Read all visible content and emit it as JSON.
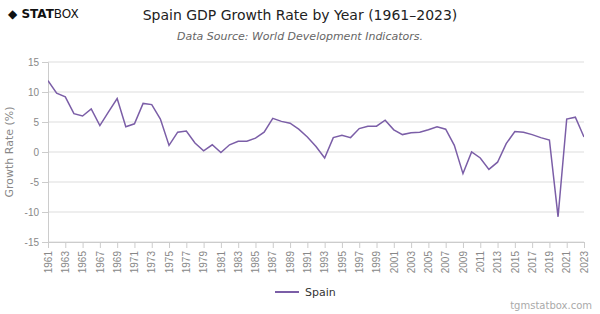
{
  "chart_data": {
    "type": "line",
    "title": "Spain GDP Growth Rate by Year (1961–2023)",
    "subtitle": "Data Source: World Development Indicators.",
    "y_label": "Growth Rate (%)",
    "annotations": [
      "◆ STAT",
      "BOX",
      "tgmstatbox.com"
    ],
    "x": [
      1961,
      1962,
      1963,
      1964,
      1965,
      1966,
      1967,
      1968,
      1969,
      1970,
      1971,
      1972,
      1973,
      1974,
      1975,
      1976,
      1977,
      1978,
      1979,
      1980,
      1981,
      1982,
      1983,
      1984,
      1985,
      1986,
      1987,
      1988,
      1989,
      1990,
      1991,
      1992,
      1993,
      1994,
      1995,
      1996,
      1997,
      1998,
      1999,
      2000,
      2001,
      2002,
      2003,
      2004,
      2005,
      2006,
      2007,
      2008,
      2009,
      2010,
      2011,
      2012,
      2013,
      2014,
      2015,
      2016,
      2017,
      2018,
      2019,
      2020,
      2021,
      2022,
      2023
    ],
    "series": [
      {
        "name": "Spain",
        "color": "#7B5EA7",
        "values": [
          11.9,
          9.8,
          9.2,
          6.4,
          6.0,
          7.2,
          4.4,
          6.7,
          8.9,
          4.2,
          4.7,
          8.1,
          7.9,
          5.5,
          1.1,
          3.3,
          3.5,
          1.5,
          0.2,
          1.2,
          -0.1,
          1.2,
          1.8,
          1.8,
          2.3,
          3.3,
          5.6,
          5.1,
          4.8,
          3.8,
          2.5,
          0.9,
          -1.0,
          2.4,
          2.8,
          2.4,
          3.9,
          4.3,
          4.3,
          5.3,
          3.7,
          2.9,
          3.2,
          3.3,
          3.7,
          4.2,
          3.8,
          1.1,
          -3.6,
          0.0,
          -1.0,
          -2.9,
          -1.7,
          1.4,
          3.4,
          3.3,
          2.9,
          2.4,
          2.0,
          -10.8,
          5.5,
          5.8,
          2.5
        ]
      }
    ],
    "xlim": [
      1961,
      2023
    ],
    "xticks": [
      1961,
      1963,
      1965,
      1967,
      1969,
      1971,
      1973,
      1975,
      1977,
      1979,
      1981,
      1983,
      1985,
      1987,
      1989,
      1991,
      1993,
      1995,
      1997,
      1999,
      2001,
      2003,
      2005,
      2007,
      2009,
      2011,
      2013,
      2015,
      2017,
      2019,
      2021,
      2023
    ],
    "ylim": [
      -15,
      15
    ],
    "yticks": [
      -15,
      -10,
      -5,
      0,
      5,
      10,
      15
    ],
    "grid": true,
    "legend": "bottom"
  }
}
